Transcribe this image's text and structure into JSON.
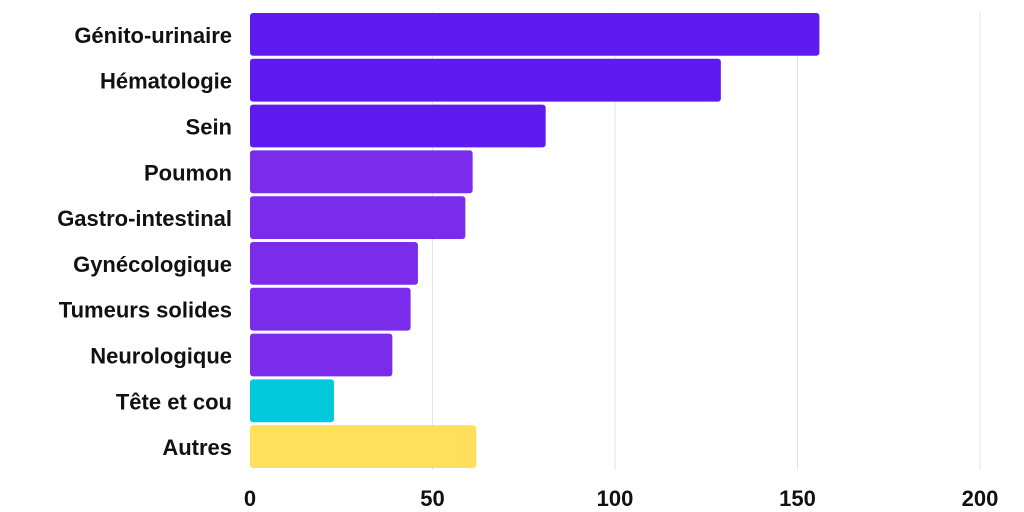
{
  "chart_data": {
    "type": "bar",
    "orientation": "horizontal",
    "title": "",
    "xlabel": "",
    "ylabel": "",
    "categories": [
      "Génito-urinaire",
      "Hématologie",
      "Sein",
      "Poumon",
      "Gastro-intestinal",
      "Gynécologique",
      "Tumeurs solides",
      "Neurologique",
      "Tête et cou",
      "Autres"
    ],
    "values": [
      156,
      129,
      81,
      61,
      59,
      46,
      44,
      39,
      23,
      62
    ],
    "bar_colors": [
      "#5f1bef",
      "#5f1bef",
      "#5f1bef",
      "#7b2bea",
      "#7b2bea",
      "#7b2bea",
      "#7b2bea",
      "#7b2bea",
      "#00c9dc",
      "#ffdf5c"
    ],
    "xlim": [
      0,
      200
    ],
    "xticks": [
      0,
      50,
      100,
      150,
      200
    ],
    "grid": true,
    "legend": "none"
  }
}
